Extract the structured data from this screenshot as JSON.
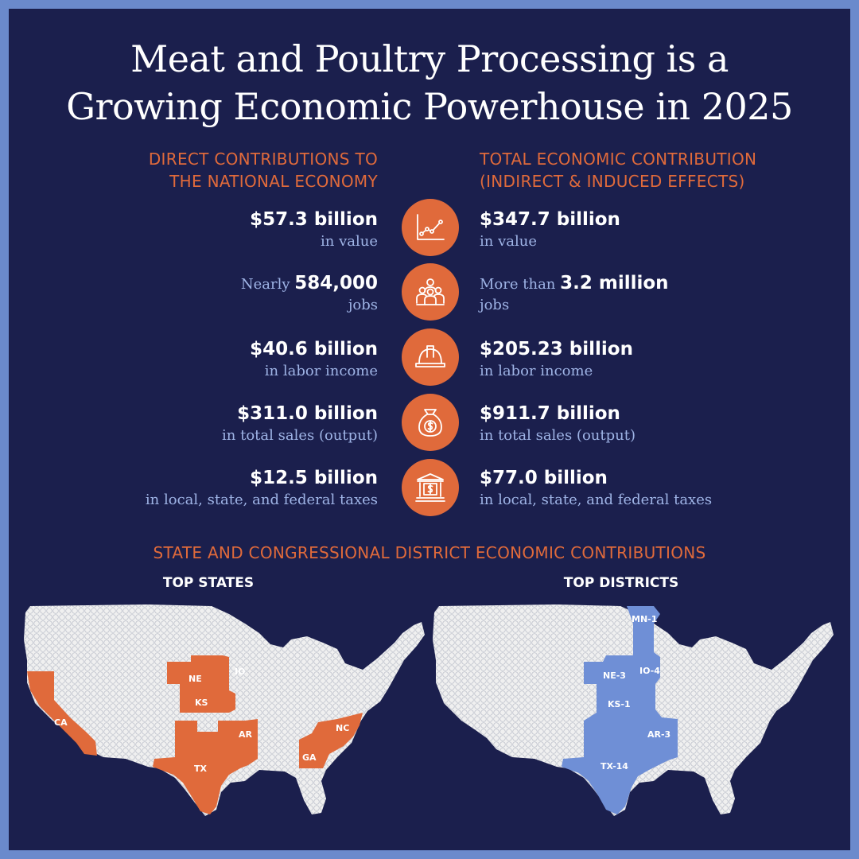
{
  "title": {
    "line1": "Meat and Poultry Processing is a",
    "line2": "Growing Economic Powerhouse in 2025"
  },
  "direct": {
    "heading_line1": "DIRECT CONTRIBUTIONS TO",
    "heading_line2": "THE NATIONAL ECONOMY",
    "rows": [
      {
        "prefix": "",
        "value": "$57.3 billion",
        "label": "in value"
      },
      {
        "prefix": "Nearly ",
        "value": "584,000",
        "label": "jobs"
      },
      {
        "prefix": "",
        "value": "$40.6 billion",
        "label": "in labor income"
      },
      {
        "prefix": "",
        "value": "$311.0 billion",
        "label": "in total sales (output)"
      },
      {
        "prefix": "",
        "value": "$12.5 billion",
        "label": "in local, state, and federal taxes"
      }
    ]
  },
  "total": {
    "heading_line1": "TOTAL ECONOMIC CONTRIBUTION",
    "heading_line2": "(INDIRECT & INDUCED EFFECTS)",
    "rows": [
      {
        "prefix": "",
        "value": "$347.7 billion",
        "label": "in value"
      },
      {
        "prefix": "More than ",
        "value": "3.2 million",
        "label": "jobs"
      },
      {
        "prefix": "",
        "value": "$205.23 billion",
        "label": "in labor income"
      },
      {
        "prefix": "",
        "value": "$911.7 billion",
        "label": "in total sales (output)"
      },
      {
        "prefix": "",
        "value": "$77.0 billion",
        "label": "in local, state, and federal taxes"
      }
    ]
  },
  "icons": [
    "line-chart-icon",
    "people-group-icon",
    "hard-hat-icon",
    "money-bag-icon",
    "bank-building-icon"
  ],
  "section2_heading": "STATE AND CONGRESSIONAL DISTRICT ECONOMIC CONTRIBUTIONS",
  "top_states": {
    "title": "TOP STATES",
    "labels": [
      "NE",
      "IO",
      "KS",
      "CA",
      "AR",
      "NC",
      "TX",
      "GA"
    ]
  },
  "top_districts": {
    "title": "TOP DISTRICTS",
    "labels": [
      "MN-1",
      "NE-3",
      "IO-4",
      "KS-1",
      "AR-3",
      "TX-14"
    ]
  },
  "colors": {
    "background": "#1b1f4d",
    "frame": "#6b8acc",
    "accent_orange": "#e06a3b",
    "accent_blue": "#6f8fd6",
    "light_text": "#9fb4e6",
    "map_base": "#f0f0f0"
  }
}
